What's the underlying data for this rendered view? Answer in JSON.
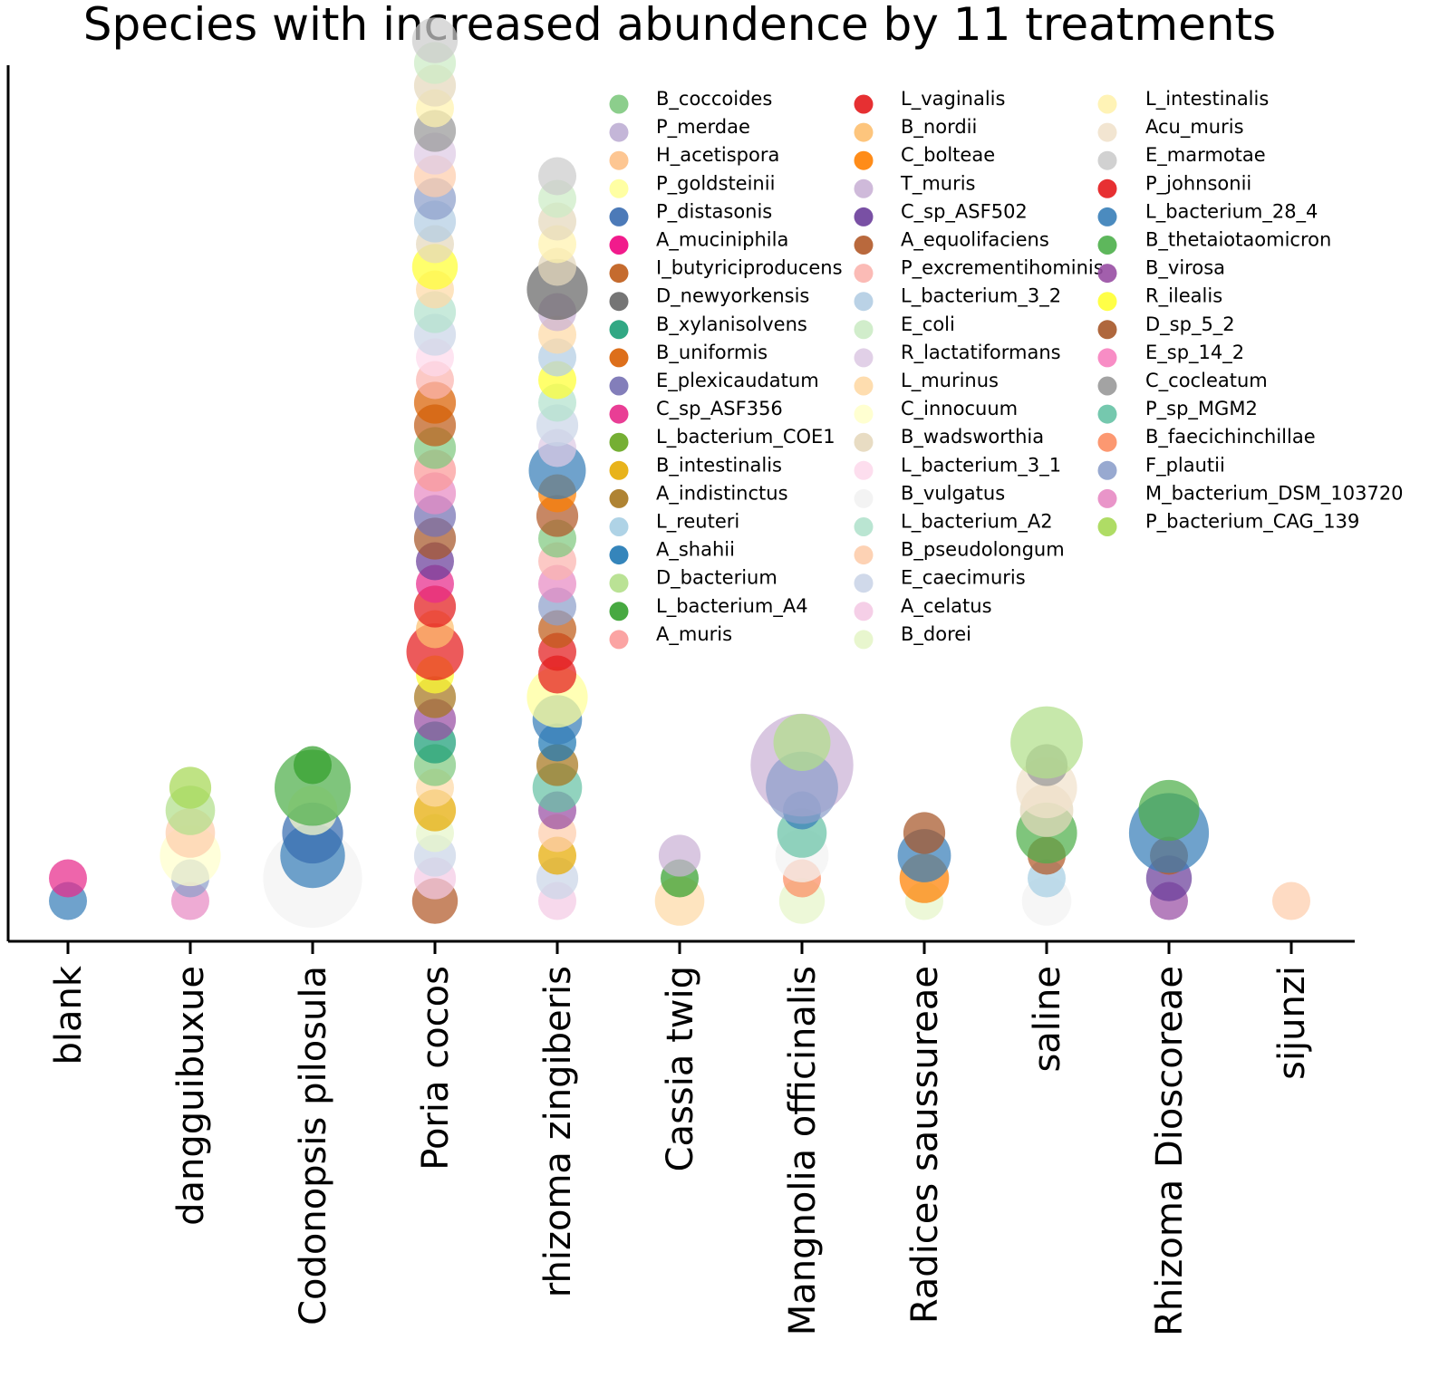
{
  "chart_data": {
    "type": "scatter",
    "title": "Species with increased abundence by 11 treatments",
    "xlabel": "",
    "ylabel": "",
    "categories": [
      "blank",
      "dangguibuxue",
      "Codonopsis pilosula",
      "Poria cocos",
      "rhizoma zingiberis",
      "Cassia twig",
      "Mangnolia officinalis",
      "Radices saussureae",
      "saline",
      "Rhizoma Dioscoreae",
      "sijunzi"
    ],
    "ylim": [
      0,
      39
    ],
    "legend": [
      {
        "name": "B_coccoides",
        "color": "#7fc97f"
      },
      {
        "name": "P_merdae",
        "color": "#beaed4"
      },
      {
        "name": "H_acetispora",
        "color": "#fdc086"
      },
      {
        "name": "P_goldsteinii",
        "color": "#ffff99"
      },
      {
        "name": "P_distasonis",
        "color": "#386cb0"
      },
      {
        "name": "A_muciniphila",
        "color": "#f0027f"
      },
      {
        "name": "I_butyriciproducens",
        "color": "#bf5b17"
      },
      {
        "name": "D_newyorkensis",
        "color": "#666666"
      },
      {
        "name": "B_xylanisolvens",
        "color": "#1b9e77"
      },
      {
        "name": "B_uniformis",
        "color": "#d95f02"
      },
      {
        "name": "E_plexicaudatum",
        "color": "#7570b3"
      },
      {
        "name": "C_sp_ASF356",
        "color": "#e7298a"
      },
      {
        "name": "L_bacterium_COE1",
        "color": "#66a61e"
      },
      {
        "name": "B_intestinalis",
        "color": "#e6ab02"
      },
      {
        "name": "A_indistinctus",
        "color": "#a6761d"
      },
      {
        "name": "L_reuteri",
        "color": "#a6cee3"
      },
      {
        "name": "A_shahii",
        "color": "#1f78b4"
      },
      {
        "name": "D_bacterium",
        "color": "#b2df8a"
      },
      {
        "name": "L_bacterium_A4",
        "color": "#33a02c"
      },
      {
        "name": "A_muris",
        "color": "#fb9a99"
      },
      {
        "name": "L_vaginalis",
        "color": "#e31a1c"
      },
      {
        "name": "B_nordii",
        "color": "#fdbf6f"
      },
      {
        "name": "C_bolteae",
        "color": "#ff7f00"
      },
      {
        "name": "T_muris",
        "color": "#cab2d6"
      },
      {
        "name": "C_sp_ASF502",
        "color": "#6a3d9a"
      },
      {
        "name": "A_equolifaciens",
        "color": "#b15928"
      },
      {
        "name": "P_excrementihominis",
        "color": "#fbb4ae"
      },
      {
        "name": "L_bacterium_3_2",
        "color": "#b3cde3"
      },
      {
        "name": "E_coli",
        "color": "#ccebc5"
      },
      {
        "name": "R_lactatiformans",
        "color": "#decbe4"
      },
      {
        "name": "L_murinus",
        "color": "#fed9a6"
      },
      {
        "name": "C_innocuum",
        "color": "#ffffcc"
      },
      {
        "name": "B_wadsworthia",
        "color": "#e5d8bd"
      },
      {
        "name": "L_bacterium_3_1",
        "color": "#fddaec"
      },
      {
        "name": "B_vulgatus",
        "color": "#f2f2f2"
      },
      {
        "name": "L_bacterium_A2",
        "color": "#b3e2cd"
      },
      {
        "name": "B_pseudolongum",
        "color": "#fdcdac"
      },
      {
        "name": "E_caecimuris",
        "color": "#cbd5e8"
      },
      {
        "name": "A_celatus",
        "color": "#f4cae4"
      },
      {
        "name": "B_dorei",
        "color": "#e6f5c9"
      },
      {
        "name": "L_intestinalis",
        "color": "#fff2ae"
      },
      {
        "name": "Acu_muris",
        "color": "#f1e2cc"
      },
      {
        "name": "E_marmotae",
        "color": "#cccccc"
      },
      {
        "name": "P_johnsonii",
        "color": "#e41a1c"
      },
      {
        "name": "L_bacterium_28_4",
        "color": "#377eb8"
      },
      {
        "name": "B_thetaiotaomicron",
        "color": "#4daf4a"
      },
      {
        "name": "B_virosa",
        "color": "#984ea3"
      },
      {
        "name": "R_ilealis",
        "color": "#ffff33"
      },
      {
        "name": "D_sp_5_2",
        "color": "#a65628"
      },
      {
        "name": "E_sp_14_2",
        "color": "#f781bf"
      },
      {
        "name": "C_cocleatum",
        "color": "#999999"
      },
      {
        "name": "P_sp_MGM2",
        "color": "#66c2a5"
      },
      {
        "name": "B_faecichinchillae",
        "color": "#fc8d62"
      },
      {
        "name": "F_plautii",
        "color": "#8da0cb"
      },
      {
        "name": "M_bacterium_DSM_103720",
        "color": "#e78ac3"
      },
      {
        "name": "P_bacterium_CAG_139",
        "color": "#a6d854"
      }
    ],
    "series": [
      {
        "category": "blank",
        "points": [
          {
            "species": "L_bacterium_28_4",
            "y": 1,
            "size": 1.0
          },
          {
            "species": "C_sp_ASF356",
            "y": 2,
            "size": 1.0
          }
        ]
      },
      {
        "category": "dangguibuxue",
        "points": [
          {
            "species": "M_bacterium_DSM_103720",
            "y": 1,
            "size": 1.0
          },
          {
            "species": "F_plautii",
            "y": 2,
            "size": 1.0
          },
          {
            "species": "C_innocuum",
            "y": 3,
            "size": 1.6
          },
          {
            "species": "B_pseudolongum",
            "y": 4,
            "size": 1.3
          },
          {
            "species": "D_bacterium",
            "y": 5,
            "size": 1.3
          },
          {
            "species": "P_bacterium_CAG_139",
            "y": 6,
            "size": 1.1
          }
        ]
      },
      {
        "category": "Codonopsis pilosula",
        "points": [
          {
            "species": "B_vulgatus",
            "y": 2,
            "size": 2.6
          },
          {
            "species": "L_bacterium_28_4",
            "y": 3,
            "size": 1.7
          },
          {
            "species": "P_distasonis",
            "y": 4,
            "size": 1.6
          },
          {
            "species": "C_innocuum",
            "y": 5,
            "size": 1.3
          },
          {
            "species": "B_thetaiotaomicron",
            "y": 6,
            "size": 2.0
          },
          {
            "species": "L_bacterium_A4",
            "y": 7,
            "size": 1.0
          }
        ]
      },
      {
        "category": "Poria cocos",
        "points": [
          {
            "species": "A_equolifaciens",
            "y": 1,
            "size": 1.2
          },
          {
            "species": "A_celatus",
            "y": 2,
            "size": 1.1
          },
          {
            "species": "E_caecimuris",
            "y": 3,
            "size": 1.1
          },
          {
            "species": "B_dorei",
            "y": 4,
            "size": 1.0
          },
          {
            "species": "B_intestinalis",
            "y": 5,
            "size": 1.1
          },
          {
            "species": "L_murinus",
            "y": 6,
            "size": 1.0
          },
          {
            "species": "B_coccoides",
            "y": 7,
            "size": 1.1
          },
          {
            "species": "B_xylanisolvens",
            "y": 8,
            "size": 1.1
          },
          {
            "species": "B_virosa",
            "y": 9,
            "size": 1.1
          },
          {
            "species": "A_indistinctus",
            "y": 10,
            "size": 1.1
          },
          {
            "species": "R_ilealis",
            "y": 11,
            "size": 1.0
          },
          {
            "species": "P_johnsonii",
            "y": 12,
            "size": 1.5
          },
          {
            "species": "B_nordii",
            "y": 13,
            "size": 1.0
          },
          {
            "species": "L_vaginalis",
            "y": 14,
            "size": 1.1
          },
          {
            "species": "C_sp_ASF356",
            "y": 15,
            "size": 1.0
          },
          {
            "species": "C_sp_ASF502",
            "y": 16,
            "size": 1.0
          },
          {
            "species": "D_sp_5_2",
            "y": 17,
            "size": 1.1
          },
          {
            "species": "E_plexicaudatum",
            "y": 18,
            "size": 1.1
          },
          {
            "species": "M_bacterium_DSM_103720",
            "y": 19,
            "size": 1.1
          },
          {
            "species": "A_muris",
            "y": 20,
            "size": 1.1
          },
          {
            "species": "B_coccoides",
            "y": 21,
            "size": 1.1
          },
          {
            "species": "I_butyriciproducens",
            "y": 22,
            "size": 1.1
          },
          {
            "species": "B_uniformis",
            "y": 23,
            "size": 1.1
          },
          {
            "species": "P_excrementihominis",
            "y": 24,
            "size": 1.0
          },
          {
            "species": "L_bacterium_3_1",
            "y": 25,
            "size": 1.0
          },
          {
            "species": "E_caecimuris",
            "y": 26,
            "size": 1.1
          },
          {
            "species": "L_bacterium_A2",
            "y": 27,
            "size": 1.1
          },
          {
            "species": "L_murinus",
            "y": 28,
            "size": 1.0
          },
          {
            "species": "R_ilealis",
            "y": 29,
            "size": 1.2
          },
          {
            "species": "B_wadsworthia",
            "y": 30,
            "size": 1.0
          },
          {
            "species": "L_bacterium_3_2",
            "y": 31,
            "size": 1.1
          },
          {
            "species": "F_plautii",
            "y": 32,
            "size": 1.1
          },
          {
            "species": "B_pseudolongum",
            "y": 33,
            "size": 1.1
          },
          {
            "species": "R_lactatiformans",
            "y": 34,
            "size": 1.1
          },
          {
            "species": "C_cocleatum",
            "y": 35,
            "size": 1.1
          },
          {
            "species": "L_intestinalis",
            "y": 36,
            "size": 1.0
          },
          {
            "species": "B_wadsworthia",
            "y": 37,
            "size": 1.1
          },
          {
            "species": "E_coli",
            "y": 38,
            "size": 1.1
          },
          {
            "species": "E_marmotae",
            "y": 39,
            "size": 1.2
          }
        ]
      },
      {
        "category": "rhizoma zingiberis",
        "points": [
          {
            "species": "A_celatus",
            "y": 1,
            "size": 1.0
          },
          {
            "species": "E_caecimuris",
            "y": 2,
            "size": 1.1
          },
          {
            "species": "B_intestinalis",
            "y": 3,
            "size": 1.0
          },
          {
            "species": "B_pseudolongum",
            "y": 4,
            "size": 1.0
          },
          {
            "species": "B_virosa",
            "y": 5,
            "size": 1.0
          },
          {
            "species": "P_sp_MGM2",
            "y": 6,
            "size": 1.3
          },
          {
            "species": "A_indistinctus",
            "y": 7,
            "size": 1.1
          },
          {
            "species": "A_shahii",
            "y": 8,
            "size": 1.0
          },
          {
            "species": "L_bacterium_28_4",
            "y": 9,
            "size": 1.3
          },
          {
            "species": "P_goldsteinii",
            "y": 10,
            "size": 1.6
          },
          {
            "species": "P_johnsonii",
            "y": 11,
            "size": 1.0
          },
          {
            "species": "L_vaginalis",
            "y": 12,
            "size": 1.0
          },
          {
            "species": "I_butyriciproducens",
            "y": 13,
            "size": 1.0
          },
          {
            "species": "F_plautii",
            "y": 14,
            "size": 1.0
          },
          {
            "species": "M_bacterium_DSM_103720",
            "y": 15,
            "size": 1.0
          },
          {
            "species": "P_excrementihominis",
            "y": 16,
            "size": 1.0
          },
          {
            "species": "B_coccoides",
            "y": 17,
            "size": 1.0
          },
          {
            "species": "A_equolifaciens",
            "y": 18,
            "size": 1.1
          },
          {
            "species": "C_bolteae",
            "y": 19,
            "size": 1.0
          },
          {
            "species": "L_bacterium_28_4",
            "y": 20,
            "size": 1.5
          },
          {
            "species": "R_lactatiformans",
            "y": 21,
            "size": 1.0
          },
          {
            "species": "E_caecimuris",
            "y": 22,
            "size": 1.1
          },
          {
            "species": "L_bacterium_A2",
            "y": 23,
            "size": 1.0
          },
          {
            "species": "R_ilealis",
            "y": 24,
            "size": 1.0
          },
          {
            "species": "L_bacterium_3_2",
            "y": 25,
            "size": 1.0
          },
          {
            "species": "L_murinus",
            "y": 26,
            "size": 1.0
          },
          {
            "species": "T_muris",
            "y": 27,
            "size": 1.0
          },
          {
            "species": "D_newyorkensis",
            "y": 28,
            "size": 1.6
          },
          {
            "species": "B_wadsworthia",
            "y": 29,
            "size": 1.0
          },
          {
            "species": "L_intestinalis",
            "y": 30,
            "size": 1.0
          },
          {
            "species": "B_wadsworthia",
            "y": 31,
            "size": 1.0
          },
          {
            "species": "E_coli",
            "y": 32,
            "size": 1.0
          },
          {
            "species": "E_marmotae",
            "y": 33,
            "size": 1.0
          }
        ]
      },
      {
        "category": "Cassia twig",
        "points": [
          {
            "species": "L_murinus",
            "y": 1,
            "size": 1.3
          },
          {
            "species": "L_bacterium_A4",
            "y": 2,
            "size": 1.0
          },
          {
            "species": "T_muris",
            "y": 3,
            "size": 1.1
          }
        ]
      },
      {
        "category": "Mangnolia officinalis",
        "points": [
          {
            "species": "B_dorei",
            "y": 1,
            "size": 1.2
          },
          {
            "species": "B_faecichinchillae",
            "y": 2,
            "size": 1.0
          },
          {
            "species": "B_vulgatus",
            "y": 3,
            "size": 1.4
          },
          {
            "species": "P_sp_MGM2",
            "y": 4,
            "size": 1.3
          },
          {
            "species": "L_bacterium_28_4",
            "y": 5,
            "size": 1.0
          },
          {
            "species": "T_muris",
            "y": 7,
            "size": 2.7
          },
          {
            "species": "F_plautii",
            "y": 6,
            "size": 1.9
          },
          {
            "species": "D_bacterium",
            "y": 8,
            "size": 1.5
          }
        ]
      },
      {
        "category": "Radices saussureae",
        "points": [
          {
            "species": "B_dorei",
            "y": 1,
            "size": 1.0
          },
          {
            "species": "C_bolteae",
            "y": 2,
            "size": 1.3
          },
          {
            "species": "L_bacterium_28_4",
            "y": 3,
            "size": 1.4
          },
          {
            "species": "D_sp_5_2",
            "y": 4,
            "size": 1.1
          }
        ]
      },
      {
        "category": "saline",
        "points": [
          {
            "species": "B_vulgatus",
            "y": 1,
            "size": 1.3
          },
          {
            "species": "L_reuteri",
            "y": 2,
            "size": 1.0
          },
          {
            "species": "A_equolifaciens",
            "y": 3,
            "size": 1.0
          },
          {
            "species": "B_thetaiotaomicron",
            "y": 4,
            "size": 1.6
          },
          {
            "species": "B_wadsworthia",
            "y": 5,
            "size": 1.4
          },
          {
            "species": "Acu_muris",
            "y": 6,
            "size": 1.6
          },
          {
            "species": "C_cocleatum",
            "y": 7,
            "size": 1.1
          },
          {
            "species": "D_bacterium",
            "y": 8,
            "size": 1.9
          }
        ]
      },
      {
        "category": "Rhizoma Dioscoreae",
        "points": [
          {
            "species": "B_virosa",
            "y": 1,
            "size": 1.0
          },
          {
            "species": "C_sp_ASF502",
            "y": 2,
            "size": 1.2
          },
          {
            "species": "I_butyriciproducens",
            "y": 3,
            "size": 1.0
          },
          {
            "species": "L_bacterium_28_4",
            "y": 4,
            "size": 2.1
          },
          {
            "species": "B_thetaiotaomicron",
            "y": 5,
            "size": 1.6
          }
        ]
      },
      {
        "category": "sijunzi",
        "points": [
          {
            "species": "B_pseudolongum",
            "y": 1,
            "size": 1.0
          }
        ]
      }
    ]
  }
}
